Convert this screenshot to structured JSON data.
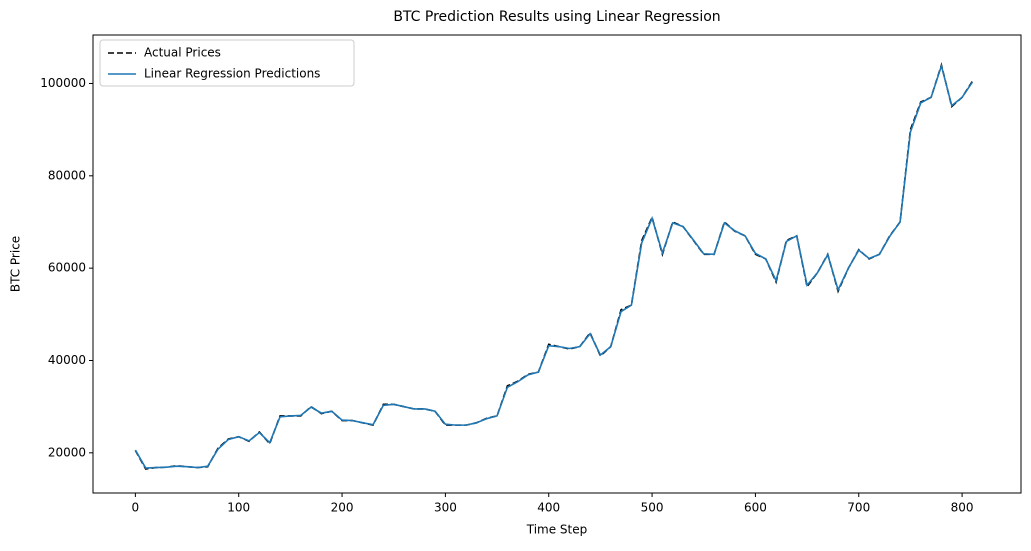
{
  "chart_data": {
    "type": "line",
    "title": "BTC Prediction Results using Linear Regression",
    "x_label": "Time Step",
    "y_label": "BTC Price",
    "x": [
      0,
      10,
      20,
      30,
      40,
      50,
      60,
      70,
      80,
      90,
      100,
      110,
      120,
      130,
      140,
      150,
      160,
      170,
      180,
      190,
      200,
      210,
      220,
      230,
      240,
      250,
      260,
      270,
      280,
      290,
      300,
      310,
      320,
      330,
      340,
      350,
      360,
      370,
      380,
      390,
      400,
      410,
      420,
      430,
      440,
      450,
      460,
      470,
      480,
      490,
      500,
      510,
      520,
      530,
      540,
      550,
      560,
      570,
      580,
      590,
      600,
      610,
      620,
      630,
      640,
      650,
      660,
      670,
      680,
      690,
      700,
      710,
      720,
      730,
      740,
      750,
      760,
      770,
      780,
      790,
      800,
      810
    ],
    "series": [
      {
        "name": "Actual Prices",
        "color": "#000000",
        "dash": true,
        "values": [
          20500,
          16500,
          16800,
          16900,
          17200,
          17000,
          16800,
          17000,
          21000,
          23000,
          23500,
          22500,
          24500,
          22000,
          28000,
          28000,
          28000,
          30000,
          28500,
          29000,
          27000,
          27000,
          26500,
          26000,
          30500,
          30500,
          30000,
          29500,
          29500,
          29000,
          26000,
          26000,
          26000,
          26500,
          27500,
          28000,
          34500,
          35500,
          37000,
          37500,
          43500,
          43000,
          42500,
          43000,
          46000,
          41000,
          43000,
          51000,
          52000,
          66000,
          71000,
          63000,
          70000,
          69000,
          66000,
          63000,
          63000,
          70000,
          68000,
          67000,
          63000,
          62000,
          57000,
          66000,
          67000,
          56000,
          59000,
          63000,
          55000,
          60000,
          64000,
          62000,
          63000,
          67000,
          70000,
          90000,
          96000,
          97000,
          104000,
          95000,
          97000,
          100500
        ]
      },
      {
        "name": "Linear Regression Predictions",
        "color": "#1f77b4",
        "dash": false,
        "values": [
          20600,
          16700,
          16800,
          16900,
          17100,
          17000,
          16800,
          17100,
          20800,
          22900,
          23500,
          22600,
          24400,
          22200,
          27800,
          28000,
          28100,
          29900,
          28600,
          29000,
          27100,
          27000,
          26500,
          26100,
          30300,
          30500,
          30000,
          29500,
          29500,
          29000,
          26200,
          26000,
          26000,
          26500,
          27400,
          28000,
          34200,
          35400,
          36900,
          37500,
          43200,
          43000,
          42600,
          43000,
          45800,
          41200,
          43000,
          50600,
          52000,
          65500,
          70800,
          63300,
          69800,
          69000,
          66100,
          63100,
          63000,
          69800,
          68100,
          67000,
          63200,
          62000,
          57300,
          65800,
          67000,
          56300,
          59000,
          62900,
          55300,
          60000,
          63900,
          62100,
          63000,
          66900,
          70000,
          89500,
          95800,
          97000,
          103800,
          95200,
          97000,
          100300
        ]
      }
    ],
    "xlim": [
      -41,
      857
    ],
    "ylim": [
      11300,
      110500
    ],
    "xticks": [
      0,
      100,
      200,
      300,
      400,
      500,
      600,
      700,
      800
    ],
    "yticks": [
      20000,
      40000,
      60000,
      80000,
      100000
    ],
    "legend": "upper left",
    "grid": false
  }
}
